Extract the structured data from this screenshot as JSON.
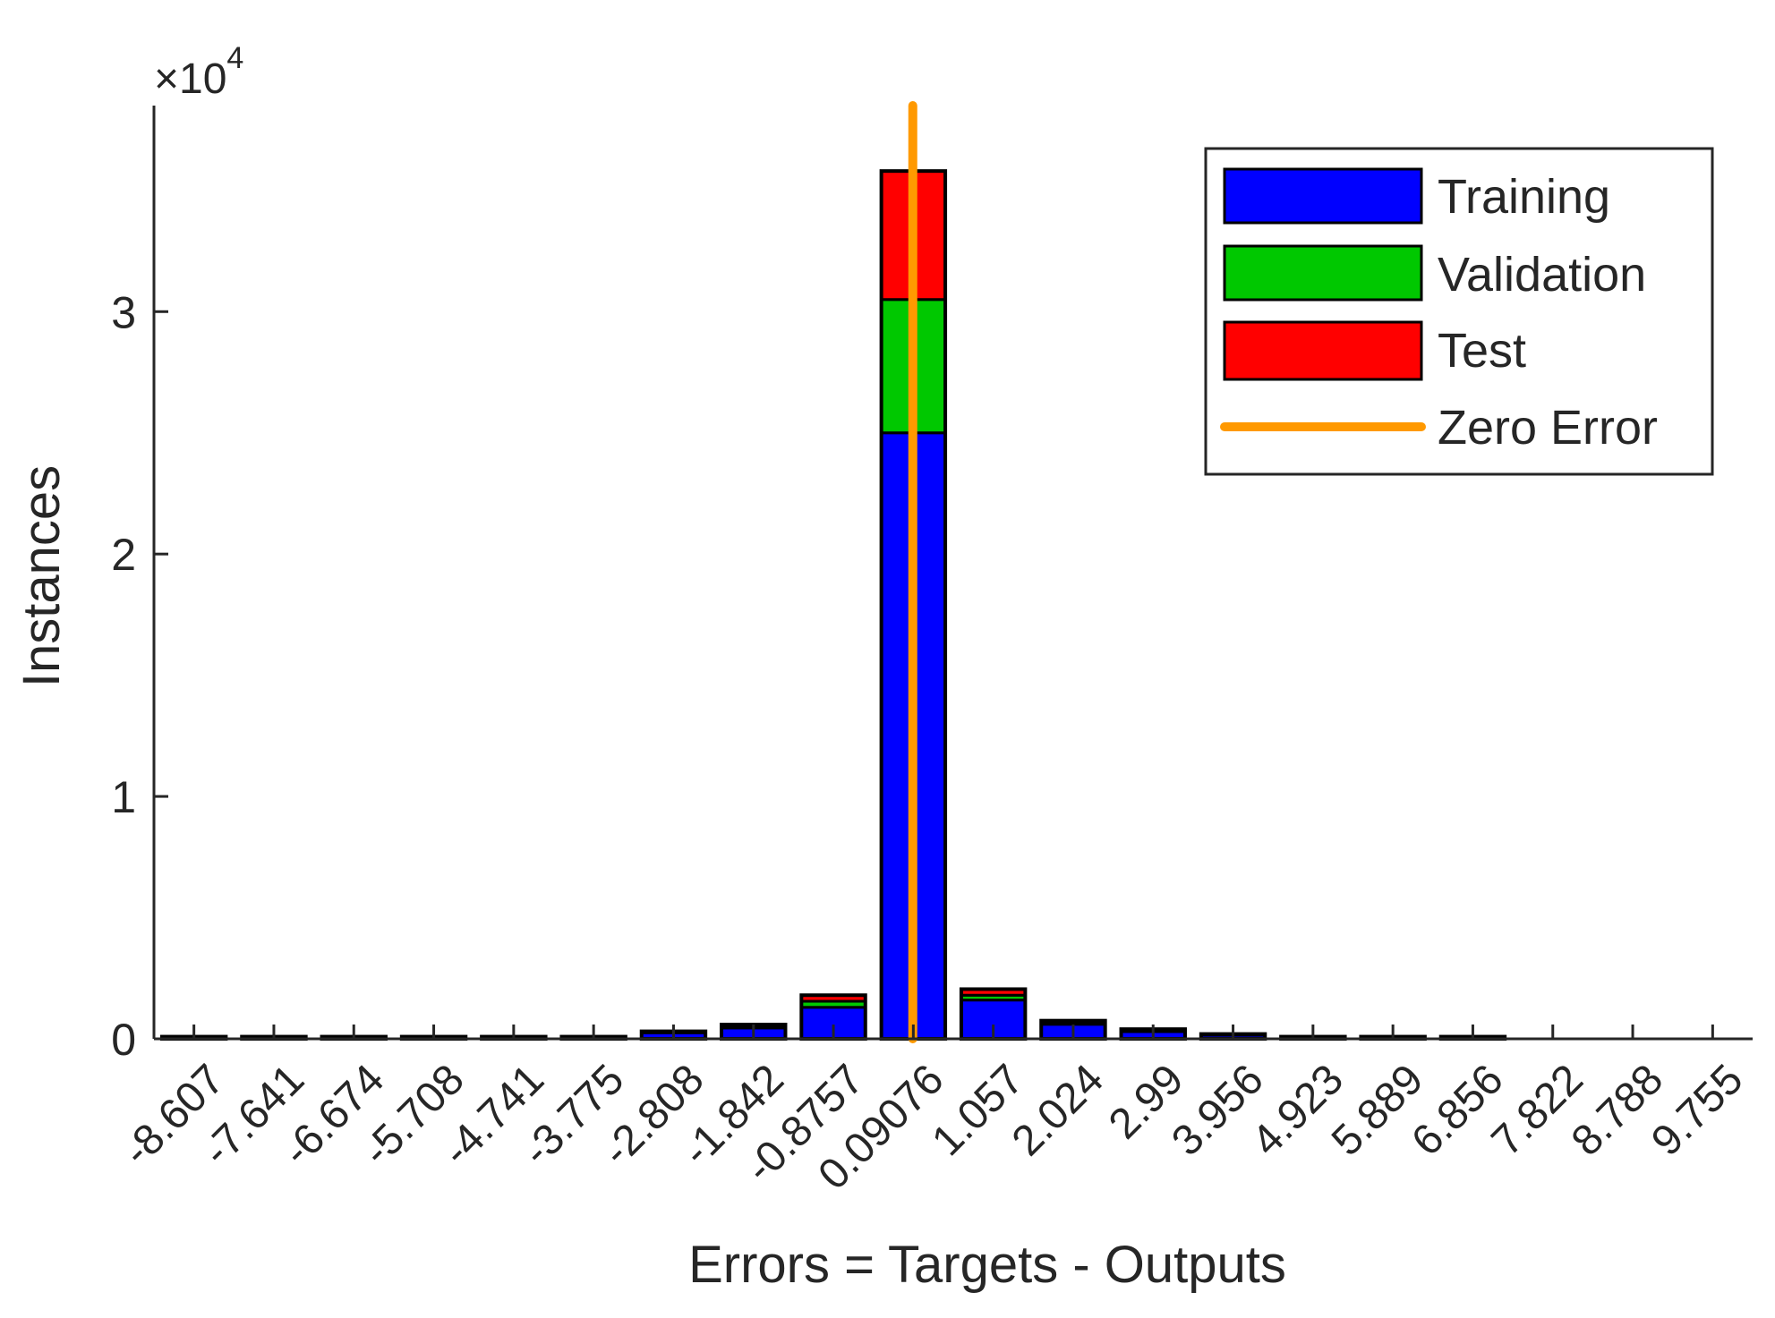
{
  "chart_data": {
    "type": "bar",
    "stacked": true,
    "title": "",
    "xlabel": "Errors = Targets - Outputs",
    "ylabel": "Instances",
    "y_exponent_label": "×10",
    "y_exponent_power": "4",
    "ylim": [
      0,
      38500
    ],
    "yticks": [
      0,
      10000,
      20000,
      30000
    ],
    "ytick_labels": [
      "0",
      "1",
      "2",
      "3"
    ],
    "categories": [
      "-8.607",
      "-7.641",
      "-6.674",
      "-5.708",
      "-4.741",
      "-3.775",
      "-2.808",
      "-1.842",
      "-0.8757",
      "0.09076",
      "1.057",
      "2.024",
      "2.99",
      "3.956",
      "4.923",
      "5.889",
      "6.856",
      "7.822",
      "8.788",
      "9.755"
    ],
    "series": [
      {
        "name": "Training",
        "color": "#0000ff",
        "values": [
          70,
          70,
          70,
          70,
          70,
          70,
          250,
          450,
          1300,
          25000,
          1600,
          600,
          300,
          150,
          70,
          70,
          70,
          0,
          0,
          0
        ]
      },
      {
        "name": "Validation",
        "color": "#00c800",
        "values": [
          10,
          10,
          10,
          10,
          10,
          10,
          30,
          70,
          250,
          5500,
          200,
          70,
          40,
          20,
          10,
          10,
          10,
          0,
          0,
          0
        ]
      },
      {
        "name": "Test",
        "color": "#ff0000",
        "values": [
          10,
          10,
          10,
          10,
          10,
          10,
          30,
          70,
          250,
          5300,
          250,
          80,
          60,
          30,
          10,
          10,
          10,
          0,
          0,
          0
        ]
      }
    ],
    "zero_error": {
      "name": "Zero Error",
      "color": "#ff9900",
      "category": "0.09076"
    },
    "legend_position": "top-right",
    "grid": false
  }
}
